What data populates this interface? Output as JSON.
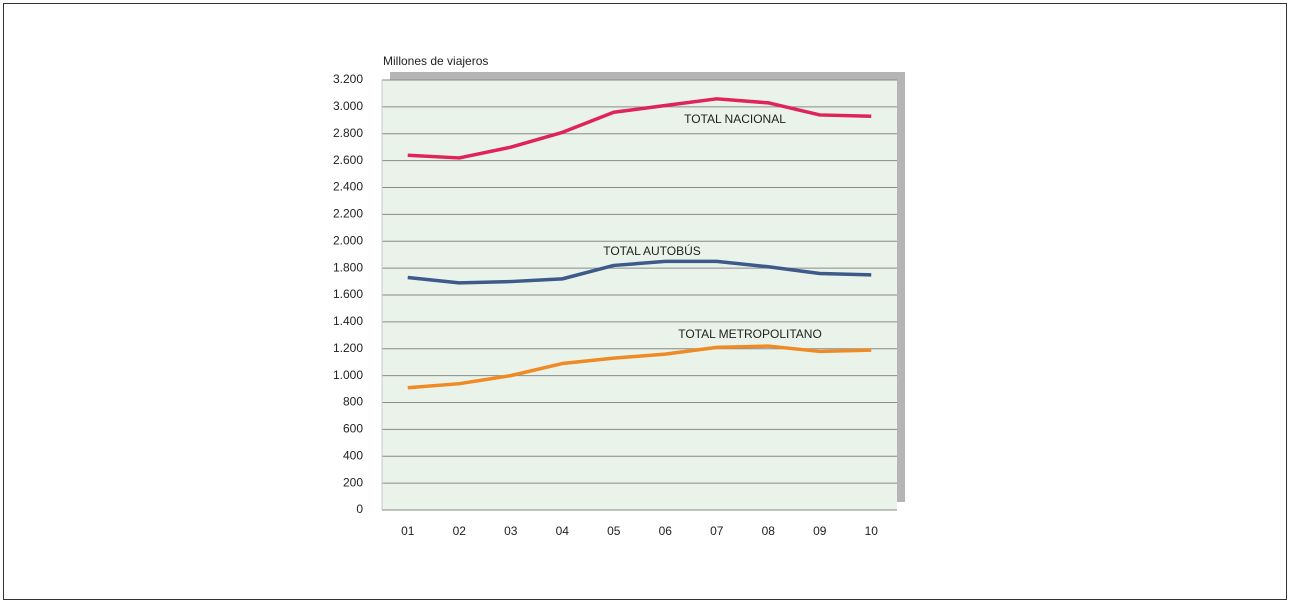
{
  "chart_data": {
    "type": "line",
    "y_label": "Millones de viajeros",
    "categories": [
      "01",
      "02",
      "03",
      "04",
      "05",
      "06",
      "07",
      "08",
      "09",
      "10"
    ],
    "series": [
      {
        "name": "TOTAL NACIONAL",
        "color": "#e0245a",
        "values": [
          2640,
          2620,
          2700,
          2810,
          2960,
          3010,
          3060,
          3030,
          2940,
          2930
        ]
      },
      {
        "name": "TOTAL AUTOBÚS",
        "color": "#3e5a8a",
        "values": [
          1730,
          1690,
          1700,
          1720,
          1820,
          1850,
          1850,
          1810,
          1760,
          1750
        ]
      },
      {
        "name": "TOTAL METROPOLITANO",
        "color": "#f08a24",
        "values": [
          910,
          940,
          1000,
          1090,
          1130,
          1160,
          1210,
          1220,
          1180,
          1190
        ]
      }
    ],
    "ylim": [
      0,
      3200
    ],
    "yticks": [
      0,
      200,
      400,
      600,
      800,
      {
        "value": 1000,
        "label": "1.000"
      },
      {
        "value": 1200,
        "label": "1.200"
      },
      {
        "value": 1400,
        "label": "1.400"
      },
      {
        "value": 1600,
        "label": "1.600"
      },
      {
        "value": 1800,
        "label": "1.800"
      },
      {
        "value": 2000,
        "label": "2.000"
      },
      {
        "value": 2200,
        "label": "2.200"
      },
      {
        "value": 2400,
        "label": "2.400"
      },
      {
        "value": 2600,
        "label": "2.600"
      },
      {
        "value": 2800,
        "label": "2.800"
      },
      {
        "value": 3000,
        "label": "3.000"
      },
      {
        "value": 3200,
        "label": "3.200"
      }
    ],
    "grid": true,
    "plot_background": "#e9f3e9"
  }
}
